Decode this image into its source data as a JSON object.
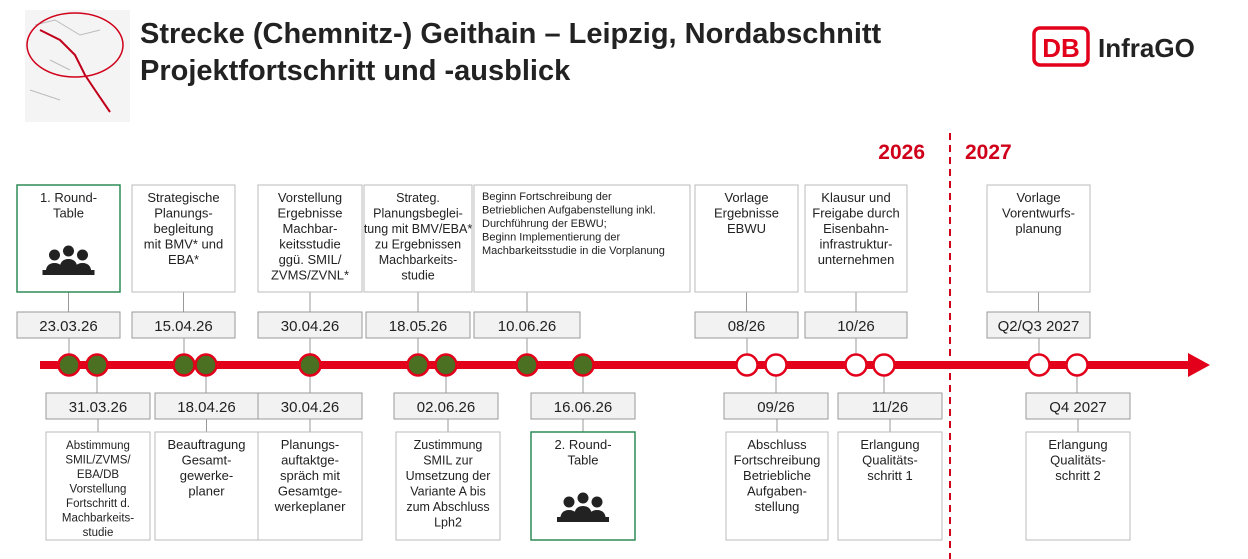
{
  "header": {
    "title_lines": [
      "Strecke (Chemnitz-) Geithain – Leipzig, Nordabschnitt",
      "Projektfortschritt und -ausblick"
    ]
  },
  "logo": {
    "mark": "DB",
    "text": "InfraGO"
  },
  "years": [
    "2026",
    "2027"
  ],
  "events_above": [
    {
      "date": "23.03.26",
      "lines": [
        "1. Round-",
        "Table"
      ],
      "dot": "#4b7022"
    },
    {
      "date": "15.04.26",
      "lines": [
        "Strategische",
        "Planungs-",
        "begleitung",
        "mit BMV* und",
        "EBA*"
      ],
      "dot": "#4b7022"
    },
    {
      "date": "30.04.26",
      "lines": [
        "Vorstellung",
        "Ergebnisse",
        "Machbar-",
        "keitsstudie",
        "ggü. SMIL/",
        "ZVMS/ZVNL*"
      ],
      "dot": "#4b7022"
    },
    {
      "date": "18.05.26",
      "lines": [
        "Strateg.",
        "Planungsbeglei-",
        "tung mit BMV/EBA*",
        "zu Ergebnissen",
        "Machbarkeits-",
        "studie"
      ],
      "dot": "#4b7022"
    },
    {
      "date": "10.06.26",
      "lines": [
        "Beginn Fortschreibung der",
        "Betrieblichen Aufgabenstellung inkl.",
        "Durchführung der EBWU;",
        "Beginn Implementierung der",
        "Machbarkeitsstudie in die Vorplanung"
      ],
      "dot": "#4b7022"
    },
    {
      "date": "08/26",
      "lines": [
        "Vorlage",
        "Ergebnisse",
        "EBWU"
      ],
      "dot": "#ffffff"
    },
    {
      "date": "10/26",
      "lines": [
        "Klausur und",
        "Freigabe durch",
        "Eisenbahn-",
        "infrastruktur-",
        "unternehmen"
      ],
      "dot": "#ffffff"
    },
    {
      "date": "Q2/Q3 2027",
      "lines": [
        "Vorlage",
        "Vorentwurfs-",
        "planung"
      ],
      "dot": "#ffffff"
    }
  ],
  "events_below": [
    {
      "date": "31.03.26",
      "lines": [
        "Abstimmung",
        "SMIL/ZVMS/",
        "EBA/DB",
        "Vorstellung",
        "Fortschritt d.",
        "Machbarkeits-",
        "studie"
      ],
      "dot": "#4b7022"
    },
    {
      "date": "18.04.26",
      "lines": [
        "Beauftragung",
        "Gesamt-",
        "gewerke-",
        "planer"
      ],
      "dot": "#4b7022"
    },
    {
      "date": "30.04.26",
      "lines": [
        "Planungs-",
        "auftaktge-",
        "spräch mit",
        "Gesamtge-",
        "werkeplaner"
      ],
      "dot": "#4b7022"
    },
    {
      "date": "02.06.26",
      "lines": [
        "Zustimmung",
        "SMIL zur",
        "Umsetzung der",
        "Variante A bis",
        "zum Abschluss",
        "Lph2"
      ],
      "dot": "#4b7022"
    },
    {
      "date": "16.06.26",
      "lines": [
        "2. Round-",
        "Table"
      ],
      "dot": "#4b7022"
    },
    {
      "date": "09/26",
      "lines": [
        "Abschluss",
        "Fortschreibung",
        "Betriebliche",
        "Aufgaben-",
        "stellung"
      ],
      "dot": "#ffffff"
    },
    {
      "date": "11/26",
      "lines": [
        "Erlangung",
        "Qualitäts-",
        "schritt 1"
      ],
      "dot": "#ffffff"
    },
    {
      "date": "Q4 2027",
      "lines": [
        "Erlangung",
        "Qualitäts-",
        "schritt 2"
      ],
      "dot": "#ffffff"
    }
  ]
}
